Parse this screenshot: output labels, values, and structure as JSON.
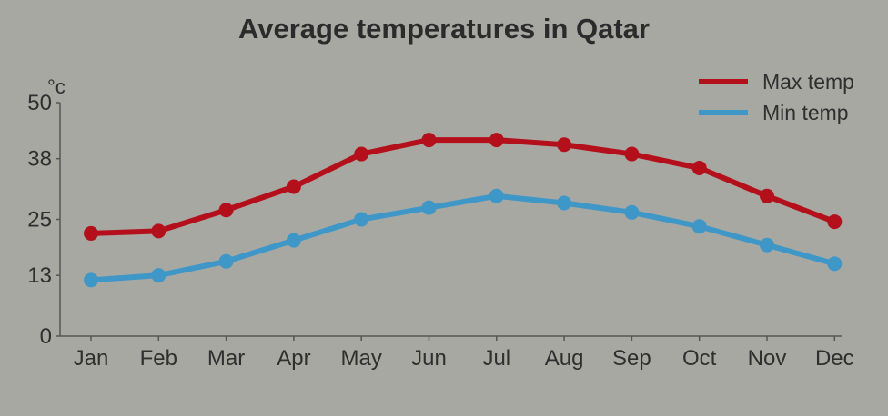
{
  "chart_data": {
    "type": "line",
    "title": "Average temperatures in Qatar",
    "ylabel": "°c",
    "xlabel": "",
    "categories": [
      "Jan",
      "Feb",
      "Mar",
      "Apr",
      "May",
      "Jun",
      "Jul",
      "Aug",
      "Sep",
      "Oct",
      "Nov",
      "Dec"
    ],
    "yticks": [
      "50",
      "38",
      "25",
      "13",
      "0"
    ],
    "ylim": [
      0,
      50
    ],
    "grid": false,
    "legend_position": "top-right",
    "series": [
      {
        "name": "Max temp",
        "color": "#b3101c",
        "values": [
          22,
          22.5,
          27,
          32,
          39,
          42,
          42,
          41,
          39,
          36,
          30,
          24.5
        ]
      },
      {
        "name": "Min temp",
        "color": "#3f97c8",
        "values": [
          12,
          13,
          16,
          20.5,
          25,
          27.5,
          30,
          28.5,
          26.5,
          23.5,
          19.5,
          15.5
        ]
      }
    ]
  }
}
